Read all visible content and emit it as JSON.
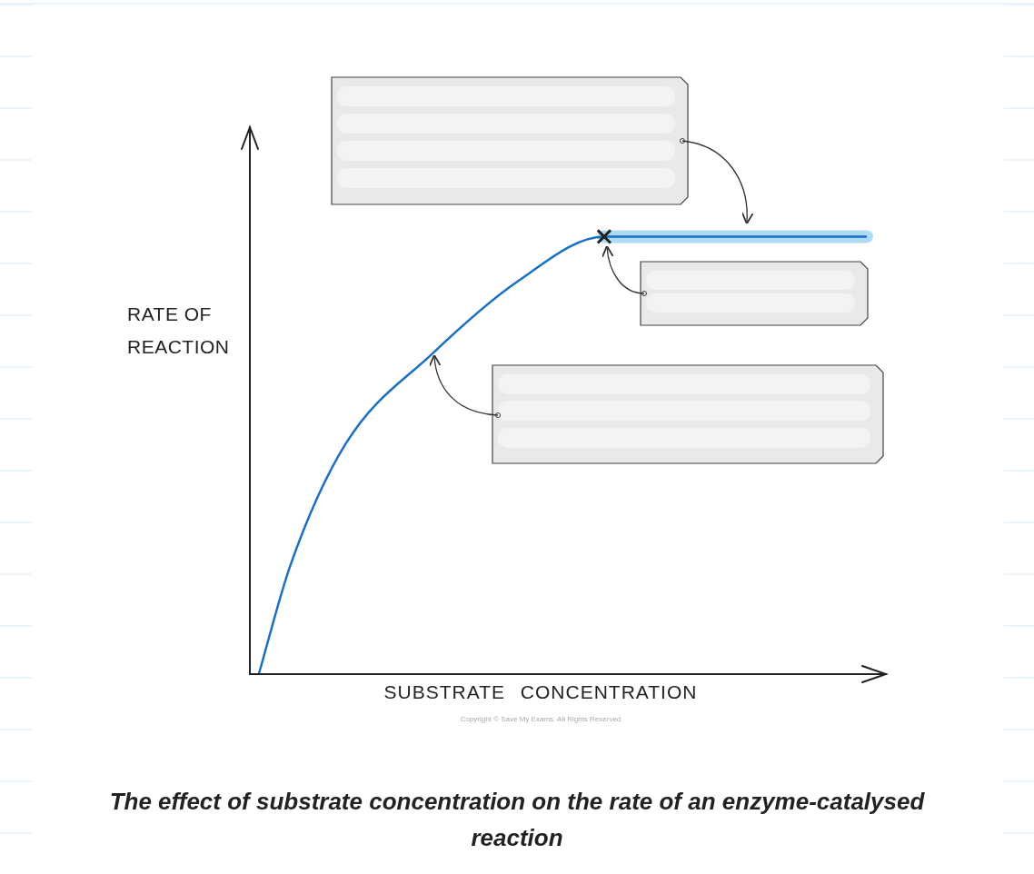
{
  "chart_data": {
    "type": "line",
    "x_label": "SUBSTRATE CONCENTRATION",
    "y_label": "RATE OF\nREACTION",
    "caption": "The effect of substrate concentration on the rate of an enzyme-catalysed reaction",
    "copyright": "Copyright © Save My Exams. All Rights Reserved",
    "x": [
      1.4,
      6.4,
      15,
      28.6,
      42.1,
      55.7,
      75,
      97
    ],
    "values": [
      0,
      20,
      42,
      58.5,
      71.8,
      80,
      80,
      80
    ],
    "xlim": [
      0,
      100
    ],
    "ylim": [
      0,
      100
    ],
    "tick_labels": false,
    "grid": false,
    "color": "#1b6fc2"
  }
}
